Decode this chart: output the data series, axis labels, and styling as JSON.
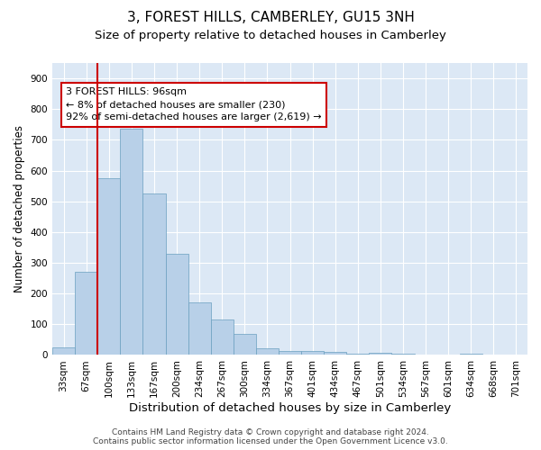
{
  "title": "3, FOREST HILLS, CAMBERLEY, GU15 3NH",
  "subtitle": "Size of property relative to detached houses in Camberley",
  "xlabel": "Distribution of detached houses by size in Camberley",
  "ylabel": "Number of detached properties",
  "bar_labels": [
    "33sqm",
    "67sqm",
    "100sqm",
    "133sqm",
    "167sqm",
    "200sqm",
    "234sqm",
    "267sqm",
    "300sqm",
    "334sqm",
    "367sqm",
    "401sqm",
    "434sqm",
    "467sqm",
    "501sqm",
    "534sqm",
    "567sqm",
    "601sqm",
    "634sqm",
    "668sqm",
    "701sqm"
  ],
  "bar_values": [
    25,
    270,
    575,
    735,
    525,
    330,
    170,
    115,
    68,
    22,
    13,
    12,
    10,
    5,
    8,
    5,
    0,
    0,
    5,
    0,
    0
  ],
  "bar_color": "#b8d0e8",
  "bar_edge_color": "#6a9fc0",
  "vline_color": "#cc0000",
  "annotation_text": "3 FOREST HILLS: 96sqm\n← 8% of detached houses are smaller (230)\n92% of semi-detached houses are larger (2,619) →",
  "annotation_box_color": "#cc0000",
  "ylim": [
    0,
    950
  ],
  "yticks": [
    0,
    100,
    200,
    300,
    400,
    500,
    600,
    700,
    800,
    900
  ],
  "background_color": "#dce8f5",
  "footer_line1": "Contains HM Land Registry data © Crown copyright and database right 2024.",
  "footer_line2": "Contains public sector information licensed under the Open Government Licence v3.0.",
  "title_fontsize": 11,
  "subtitle_fontsize": 9.5,
  "xlabel_fontsize": 9.5,
  "ylabel_fontsize": 8.5,
  "tick_fontsize": 7.5,
  "annotation_fontsize": 8,
  "footer_fontsize": 6.5
}
